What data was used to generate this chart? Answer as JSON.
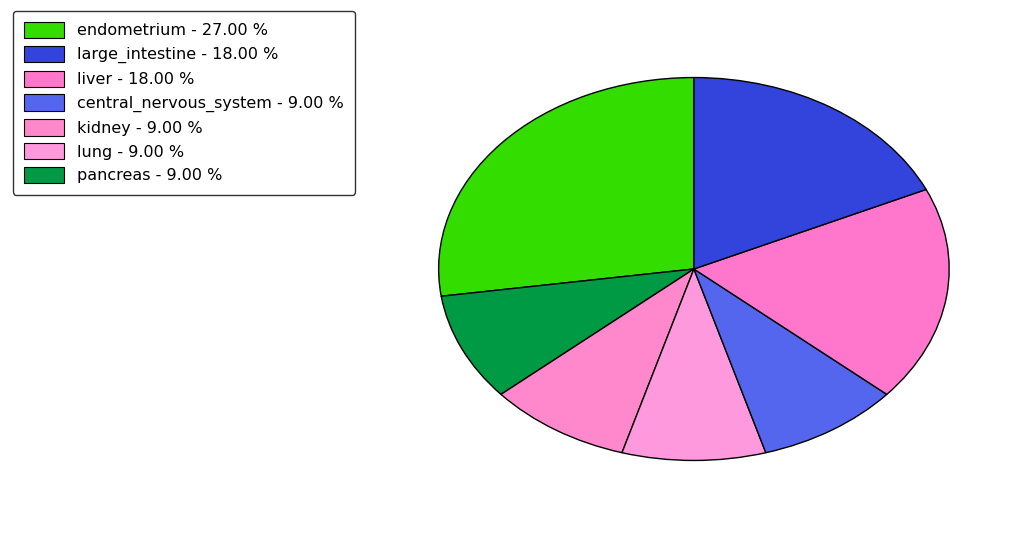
{
  "labels": [
    "endometrium",
    "pancreas",
    "kidney",
    "lung",
    "central_nervous_system",
    "liver",
    "large_intestine"
  ],
  "percentages": [
    27.0,
    9.0,
    9.0,
    9.0,
    9.0,
    18.0,
    18.0
  ],
  "colors": [
    "#33dd00",
    "#009944",
    "#ff88cc",
    "#ff99dd",
    "#5566ee",
    "#ff77cc",
    "#3344dd"
  ],
  "legend_labels": [
    "endometrium - 27.00 %",
    "large_intestine - 18.00 %",
    "liver - 18.00 %",
    "central_nervous_system - 9.00 %",
    "kidney - 9.00 %",
    "lung - 9.00 %",
    "pancreas - 9.00 %"
  ],
  "legend_colors": [
    "#33dd00",
    "#3344dd",
    "#ff77cc",
    "#5566ee",
    "#ff88cc",
    "#ff99dd",
    "#009944"
  ],
  "background_color": "#ffffff",
  "startangle": 90,
  "figsize": [
    10.13,
    5.38
  ],
  "dpi": 100
}
